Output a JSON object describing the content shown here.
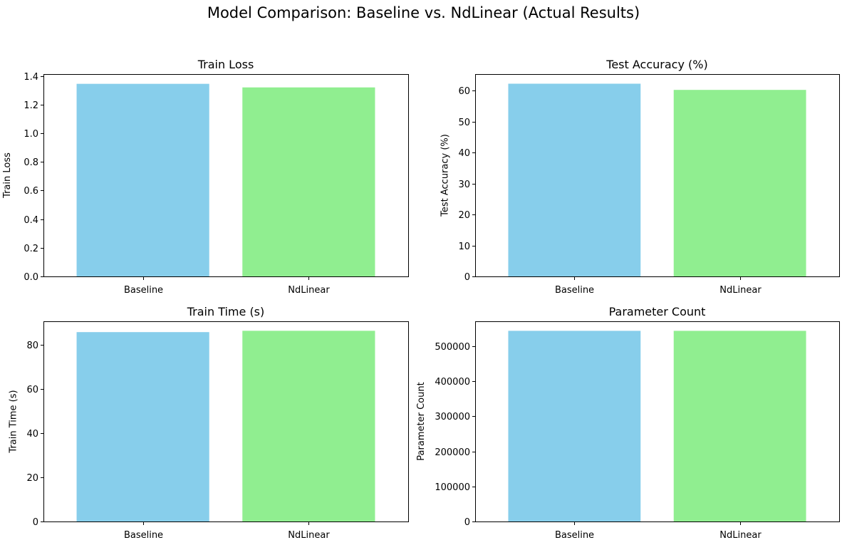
{
  "figure": {
    "title": "Model Comparison: Baseline vs. NdLinear (Actual Results)"
  },
  "colors": {
    "baseline": "#87ceeb",
    "ndlinear": "#90ee90",
    "axis": "#000000"
  },
  "chart_data": [
    {
      "type": "bar",
      "title": "Train Loss",
      "xlabel": "",
      "ylabel": "Train Loss",
      "categories": [
        "Baseline",
        "NdLinear"
      ],
      "values": [
        1.345,
        1.32
      ],
      "ylim": [
        0,
        1.413
      ],
      "yticks": [
        0.0,
        0.2,
        0.4,
        0.6,
        0.8,
        1.0,
        1.2,
        1.4
      ],
      "ytick_labels": [
        "0.0",
        "0.2",
        "0.4",
        "0.6",
        "0.8",
        "1.0",
        "1.2",
        "1.4"
      ],
      "grid": false
    },
    {
      "type": "bar",
      "title": "Test Accuracy (%)",
      "xlabel": "",
      "ylabel": "Test Accuracy (%)",
      "categories": [
        "Baseline",
        "NdLinear"
      ],
      "values": [
        62.2,
        60.2
      ],
      "ylim": [
        0,
        65.3
      ],
      "yticks": [
        0,
        10,
        20,
        30,
        40,
        50,
        60
      ],
      "ytick_labels": [
        "0",
        "10",
        "20",
        "30",
        "40",
        "50",
        "60"
      ],
      "grid": false
    },
    {
      "type": "bar",
      "title": "Train Time (s)",
      "xlabel": "",
      "ylabel": "Train Time (s)",
      "categories": [
        "Baseline",
        "NdLinear"
      ],
      "values": [
        85.8,
        86.4
      ],
      "ylim": [
        0,
        90.7
      ],
      "yticks": [
        0,
        20,
        40,
        60,
        80
      ],
      "ytick_labels": [
        "0",
        "20",
        "40",
        "60",
        "80"
      ],
      "grid": false
    },
    {
      "type": "bar",
      "title": "Parameter Count",
      "xlabel": "",
      "ylabel": "Parameter Count",
      "categories": [
        "Baseline",
        "NdLinear"
      ],
      "values": [
        544000,
        544000
      ],
      "ylim": [
        0,
        571200
      ],
      "yticks": [
        0,
        100000,
        200000,
        300000,
        400000,
        500000
      ],
      "ytick_labels": [
        "0",
        "100000",
        "200000",
        "300000",
        "400000",
        "500000"
      ],
      "grid": false
    }
  ]
}
